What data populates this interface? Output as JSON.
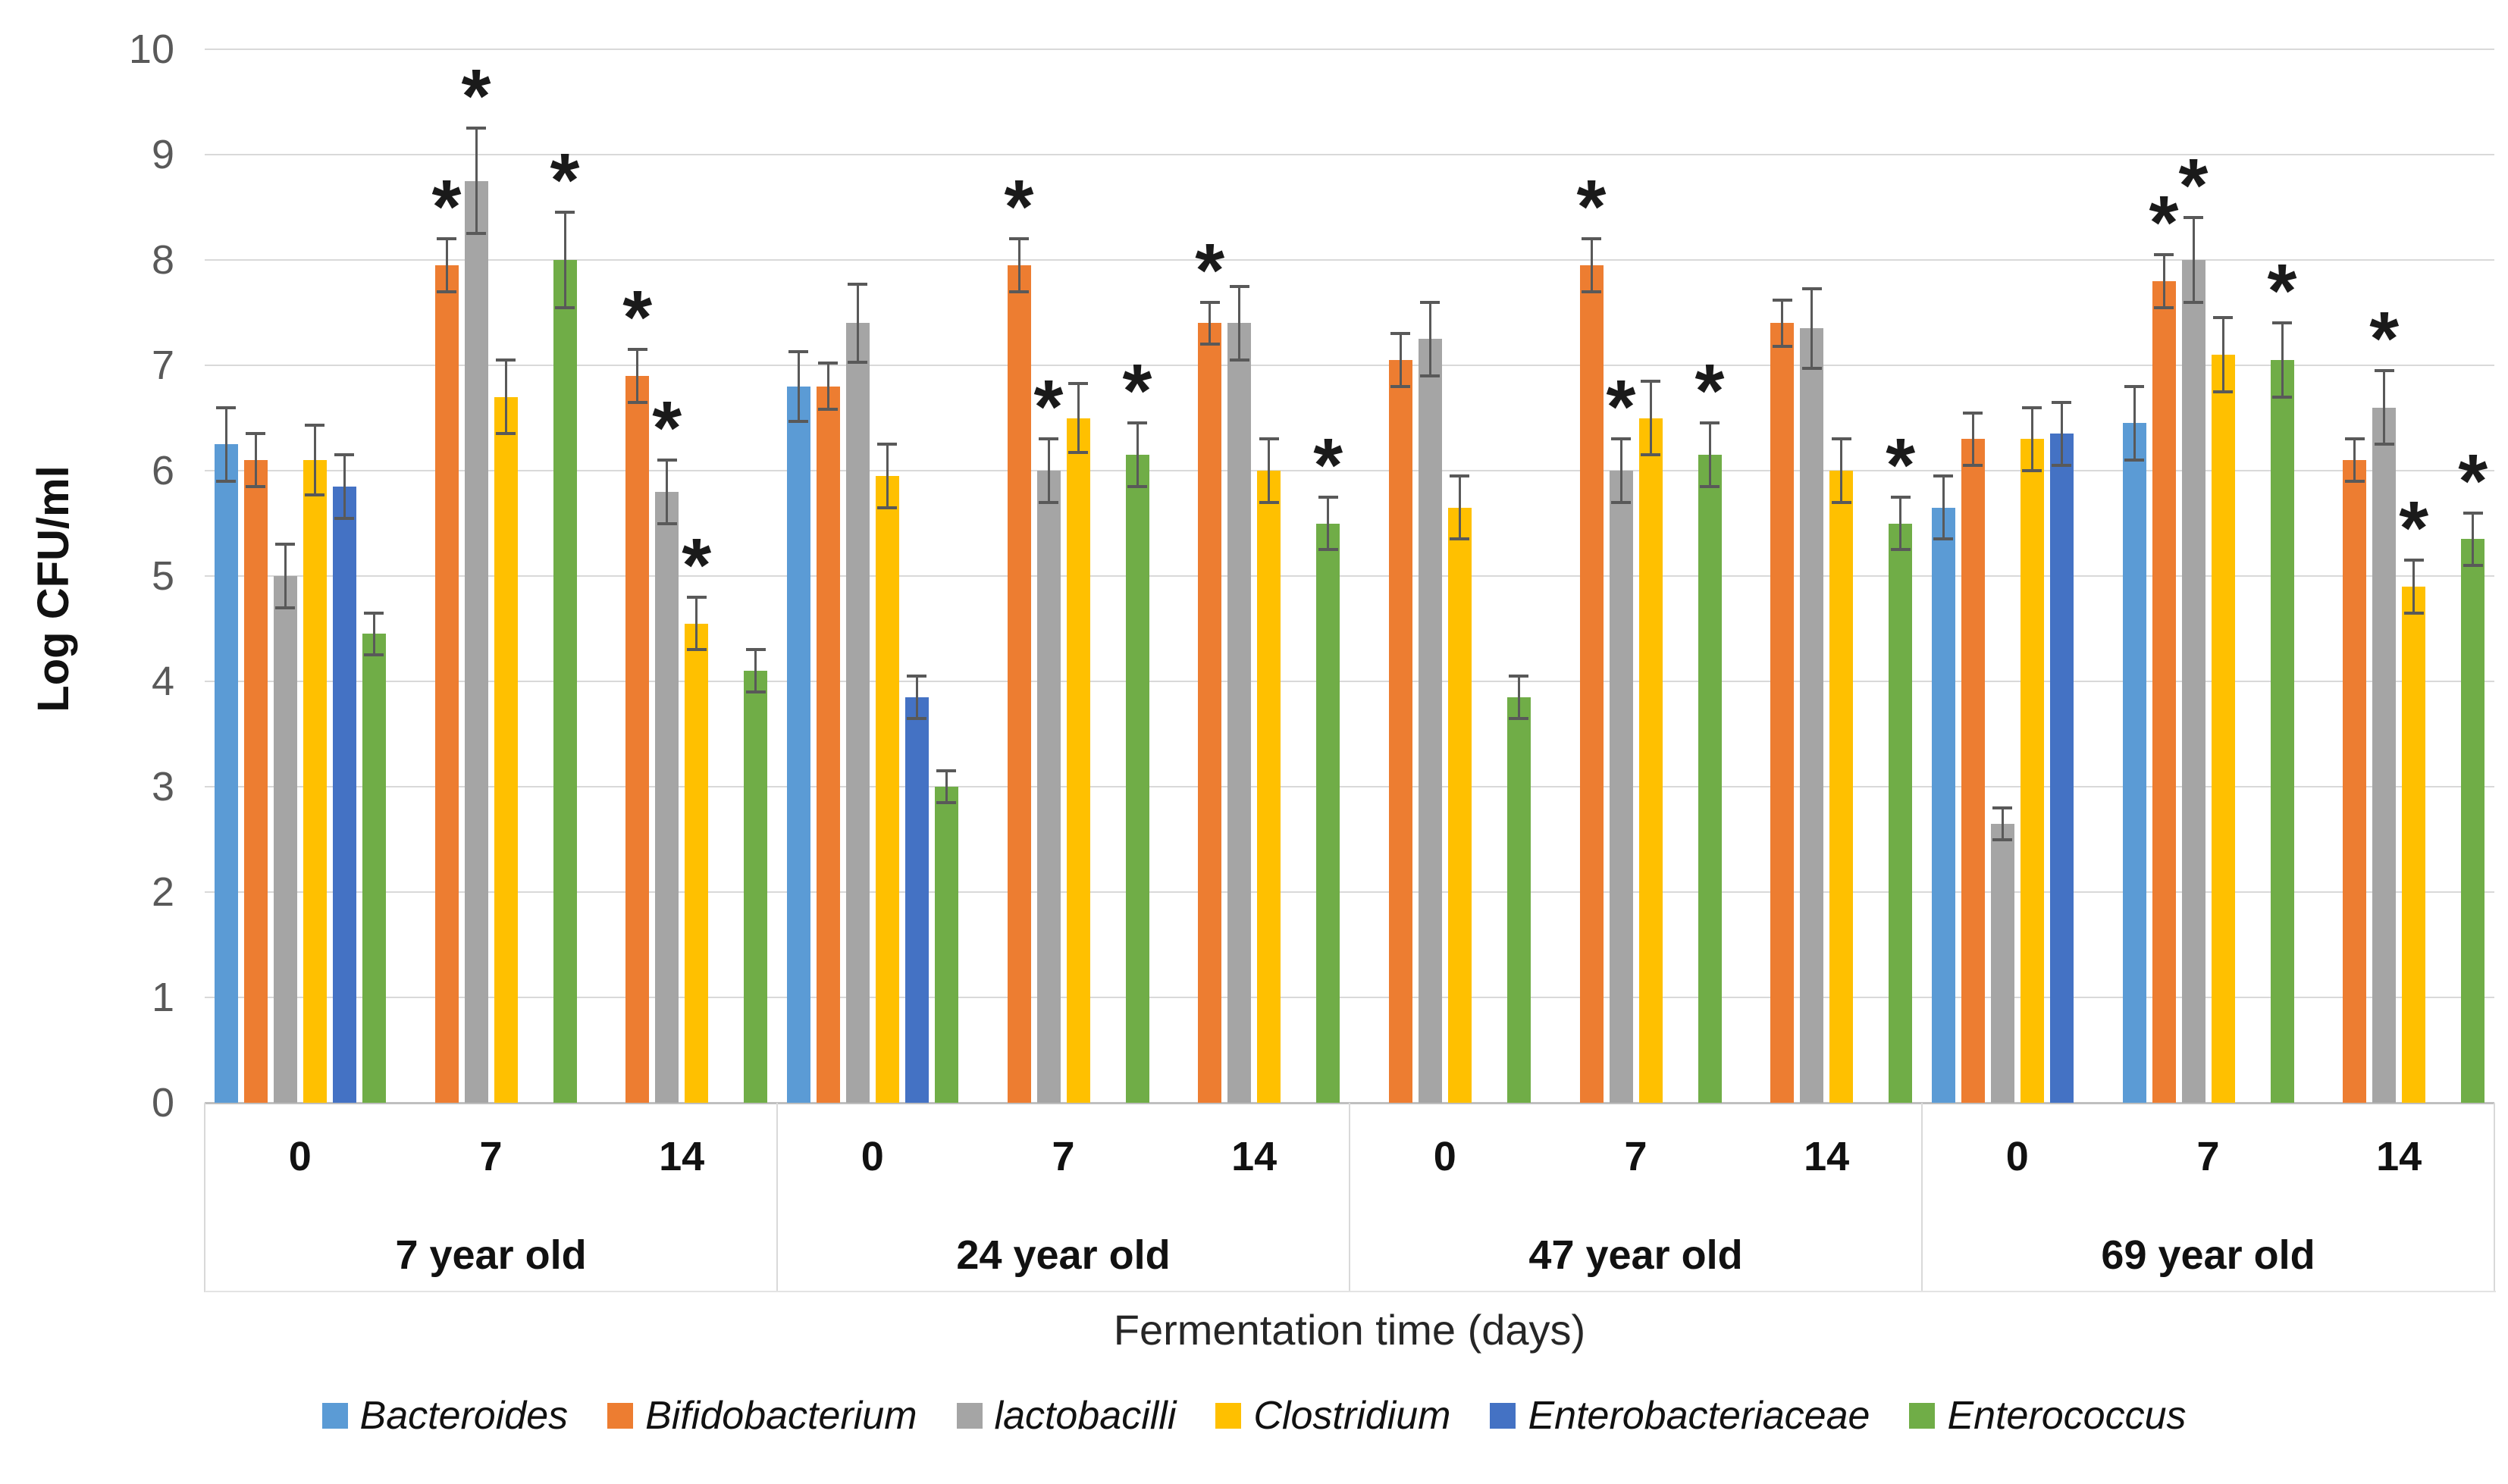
{
  "chart_data": {
    "type": "bar",
    "title": "",
    "ylabel": "Log CFU/ml",
    "xlabel": "Fermentation time (days)",
    "ylim": [
      0,
      10
    ],
    "yticks": [
      0,
      1,
      2,
      3,
      4,
      5,
      6,
      7,
      8,
      9,
      10
    ],
    "grid": true,
    "legend_position": "bottom",
    "significance_marker": "*",
    "error_bar_color": "#595959",
    "series": [
      {
        "name": "Bacteroides",
        "color": "#5B9BD5"
      },
      {
        "name": "Bifidobacterium",
        "color": "#ED7D31"
      },
      {
        "name": "lactobacilli",
        "color": "#A5A5A5"
      },
      {
        "name": "Clostridium",
        "color": "#FFC000"
      },
      {
        "name": "Enterobacteriaceae",
        "color": "#4472C4"
      },
      {
        "name": "Enterococcus",
        "color": "#70AD47"
      }
    ],
    "groups": [
      {
        "label": "7 year old",
        "times": [
          {
            "label": "0",
            "bars": [
              {
                "s": "Bacteroides",
                "v": 6.25,
                "e": 0.35,
                "sig": false
              },
              {
                "s": "Bifidobacterium",
                "v": 6.1,
                "e": 0.25,
                "sig": false
              },
              {
                "s": "lactobacilli",
                "v": 5.0,
                "e": 0.3,
                "sig": false
              },
              {
                "s": "Clostridium",
                "v": 6.1,
                "e": 0.33,
                "sig": false
              },
              {
                "s": "Enterobacteriaceae",
                "v": 5.85,
                "e": 0.3,
                "sig": false
              },
              {
                "s": "Enterococcus",
                "v": 4.45,
                "e": 0.2,
                "sig": false
              }
            ]
          },
          {
            "label": "7",
            "bars": [
              {
                "s": "Bifidobacterium",
                "v": 7.95,
                "e": 0.25,
                "sig": true
              },
              {
                "s": "lactobacilli",
                "v": 8.75,
                "e": 0.5,
                "sig": true
              },
              {
                "s": "Clostridium",
                "v": 6.7,
                "e": 0.35,
                "sig": false
              },
              {
                "s": "Enterococcus",
                "v": 8.0,
                "e": 0.45,
                "sig": true
              }
            ]
          },
          {
            "label": "14",
            "bars": [
              {
                "s": "Bifidobacterium",
                "v": 6.9,
                "e": 0.25,
                "sig": true
              },
              {
                "s": "lactobacilli",
                "v": 5.8,
                "e": 0.3,
                "sig": true
              },
              {
                "s": "Clostridium",
                "v": 4.55,
                "e": 0.25,
                "sig": true
              },
              {
                "s": "Enterococcus",
                "v": 4.1,
                "e": 0.2,
                "sig": false
              }
            ]
          }
        ]
      },
      {
        "label": "24 year old",
        "times": [
          {
            "label": "0",
            "bars": [
              {
                "s": "Bacteroides",
                "v": 6.8,
                "e": 0.33,
                "sig": false
              },
              {
                "s": "Bifidobacterium",
                "v": 6.8,
                "e": 0.22,
                "sig": false
              },
              {
                "s": "lactobacilli",
                "v": 7.4,
                "e": 0.37,
                "sig": false
              },
              {
                "s": "Clostridium",
                "v": 5.95,
                "e": 0.3,
                "sig": false
              },
              {
                "s": "Enterobacteriaceae",
                "v": 3.85,
                "e": 0.2,
                "sig": false
              },
              {
                "s": "Enterococcus",
                "v": 3.0,
                "e": 0.15,
                "sig": false
              }
            ]
          },
          {
            "label": "7",
            "bars": [
              {
                "s": "Bifidobacterium",
                "v": 7.95,
                "e": 0.25,
                "sig": true
              },
              {
                "s": "lactobacilli",
                "v": 6.0,
                "e": 0.3,
                "sig": true
              },
              {
                "s": "Clostridium",
                "v": 6.5,
                "e": 0.33,
                "sig": false
              },
              {
                "s": "Enterococcus",
                "v": 6.15,
                "e": 0.3,
                "sig": true
              }
            ]
          },
          {
            "label": "14",
            "bars": [
              {
                "s": "Bifidobacterium",
                "v": 7.4,
                "e": 0.2,
                "sig": true
              },
              {
                "s": "lactobacilli",
                "v": 7.4,
                "e": 0.35,
                "sig": false
              },
              {
                "s": "Clostridium",
                "v": 6.0,
                "e": 0.3,
                "sig": false
              },
              {
                "s": "Enterococcus",
                "v": 5.5,
                "e": 0.25,
                "sig": true
              }
            ]
          }
        ]
      },
      {
        "label": "47 year old",
        "times": [
          {
            "label": "0",
            "bars": [
              {
                "s": "Bifidobacterium",
                "v": 7.05,
                "e": 0.25,
                "sig": false
              },
              {
                "s": "lactobacilli",
                "v": 7.25,
                "e": 0.35,
                "sig": false
              },
              {
                "s": "Clostridium",
                "v": 5.65,
                "e": 0.3,
                "sig": false
              },
              {
                "s": "Enterococcus",
                "v": 3.85,
                "e": 0.2,
                "sig": false
              }
            ]
          },
          {
            "label": "7",
            "bars": [
              {
                "s": "Bifidobacterium",
                "v": 7.95,
                "e": 0.25,
                "sig": true
              },
              {
                "s": "lactobacilli",
                "v": 6.0,
                "e": 0.3,
                "sig": true
              },
              {
                "s": "Clostridium",
                "v": 6.5,
                "e": 0.35,
                "sig": false
              },
              {
                "s": "Enterococcus",
                "v": 6.15,
                "e": 0.3,
                "sig": true
              }
            ]
          },
          {
            "label": "14",
            "bars": [
              {
                "s": "Bifidobacterium",
                "v": 7.4,
                "e": 0.22,
                "sig": false
              },
              {
                "s": "lactobacilli",
                "v": 7.35,
                "e": 0.38,
                "sig": false
              },
              {
                "s": "Clostridium",
                "v": 6.0,
                "e": 0.3,
                "sig": false
              },
              {
                "s": "Enterococcus",
                "v": 5.5,
                "e": 0.25,
                "sig": true
              }
            ]
          }
        ]
      },
      {
        "label": "69 year old",
        "times": [
          {
            "label": "0",
            "bars": [
              {
                "s": "Bacteroides",
                "v": 5.65,
                "e": 0.3,
                "sig": false
              },
              {
                "s": "Bifidobacterium",
                "v": 6.3,
                "e": 0.25,
                "sig": false
              },
              {
                "s": "lactobacilli",
                "v": 2.65,
                "e": 0.15,
                "sig": false
              },
              {
                "s": "Clostridium",
                "v": 6.3,
                "e": 0.3,
                "sig": false
              },
              {
                "s": "Enterobacteriaceae",
                "v": 6.35,
                "e": 0.3,
                "sig": false
              }
            ]
          },
          {
            "label": "7",
            "bars": [
              {
                "s": "Bacteroides",
                "v": 6.45,
                "e": 0.35,
                "sig": false
              },
              {
                "s": "Bifidobacterium",
                "v": 7.8,
                "e": 0.25,
                "sig": true
              },
              {
                "s": "lactobacilli",
                "v": 8.0,
                "e": 0.4,
                "sig": true
              },
              {
                "s": "Clostridium",
                "v": 7.1,
                "e": 0.35,
                "sig": false
              },
              {
                "s": "Enterococcus",
                "v": 7.05,
                "e": 0.35,
                "sig": true
              }
            ]
          },
          {
            "label": "14",
            "bars": [
              {
                "s": "Bifidobacterium",
                "v": 6.1,
                "e": 0.2,
                "sig": false
              },
              {
                "s": "lactobacilli",
                "v": 6.6,
                "e": 0.35,
                "sig": true
              },
              {
                "s": "Clostridium",
                "v": 4.9,
                "e": 0.25,
                "sig": true
              },
              {
                "s": "Enterococcus",
                "v": 5.35,
                "e": 0.25,
                "sig": true
              }
            ]
          }
        ]
      }
    ]
  }
}
